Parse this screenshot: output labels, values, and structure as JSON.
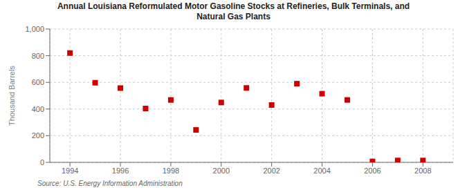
{
  "chart_data": {
    "type": "scatter",
    "title": "Annual Louisiana Reformulated Motor Gasoline Stocks at Refineries, Bulk Terminals, and\nNatural Gas Plants",
    "ylabel": "Thousand Barrels",
    "annotations": [
      "Source: U.S. Energy Information Administration"
    ],
    "x": [
      1994,
      1995,
      1996,
      1997,
      1998,
      1999,
      2000,
      2001,
      2002,
      2003,
      2004,
      2005,
      2006,
      2007,
      2008
    ],
    "values": [
      820,
      597,
      557,
      404,
      468,
      243,
      449,
      558,
      430,
      590,
      515,
      468,
      7,
      14,
      14
    ],
    "color": "#cc0000",
    "marker": "square",
    "xlim": [
      1993.2,
      2009.2
    ],
    "ylim": [
      0,
      1000
    ],
    "yticks": [
      0,
      200,
      400,
      600,
      800,
      {
        "value": 1000,
        "label": "1,000"
      }
    ],
    "xticks": [
      1994,
      1996,
      1998,
      2000,
      2002,
      2004,
      2006,
      2008
    ],
    "grid": true
  }
}
